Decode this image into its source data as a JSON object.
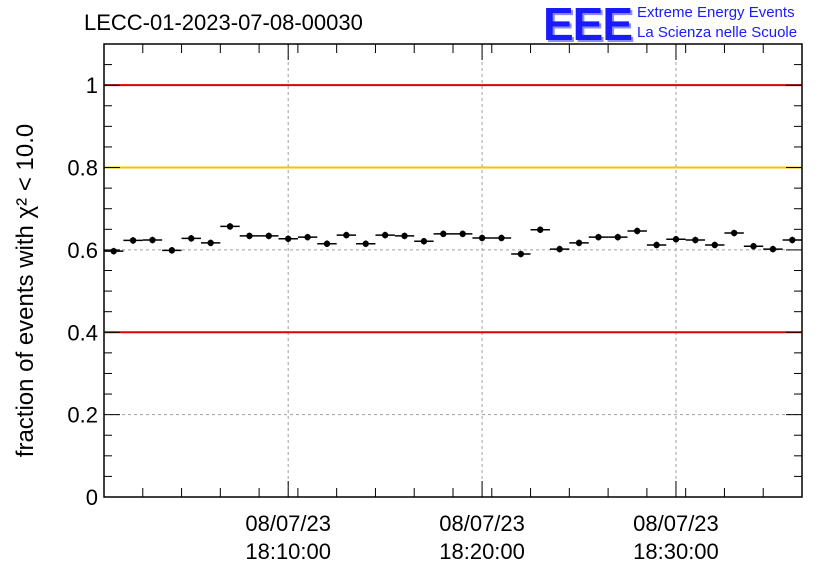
{
  "header": {
    "title": "LECC-01-2023-07-08-00030",
    "logo_text": "EEE",
    "logo_line1": "Extreme Energy Events",
    "logo_line2": "La Scienza nelle Scuole"
  },
  "chart_data": {
    "type": "scatter",
    "title": "LECC-01-2023-07-08-00030",
    "xlabel": "",
    "ylabel": "fraction of events with χ² < 10.0",
    "ylim": [
      0,
      1.1
    ],
    "xlim_minutes": [
      0,
      36
    ],
    "x_unit": "minutes after 08/07/23 18:00:30",
    "yticks": [
      "0",
      "0.2",
      "0.4",
      "0.6",
      "0.8",
      "1"
    ],
    "xticks": [
      {
        "x": 9.5,
        "date": "08/07/23",
        "time": "18:10:00"
      },
      {
        "x": 19.5,
        "date": "08/07/23",
        "time": "18:20:00"
      },
      {
        "x": 29.5,
        "date": "08/07/23",
        "time": "18:30:00"
      }
    ],
    "grid": true,
    "reference_lines": [
      {
        "y": 1.0,
        "color": "#e00000"
      },
      {
        "y": 0.8,
        "color": "#ffc000"
      },
      {
        "y": 0.4,
        "color": "#e00000"
      }
    ],
    "points": {
      "x": [
        0.5,
        1.5,
        2.5,
        3.5,
        4.5,
        5.5,
        6.5,
        7.5,
        8.5,
        9.5,
        10.5,
        11.5,
        12.5,
        13.5,
        14.5,
        15.5,
        16.5,
        17.5,
        18.5,
        19.5,
        20.5,
        21.5,
        22.5,
        23.5,
        24.5,
        25.5,
        26.5,
        27.5,
        28.5,
        29.5,
        30.5,
        31.5,
        32.5,
        33.5,
        34.5,
        35.5
      ],
      "y": [
        0.597,
        0.623,
        0.624,
        0.599,
        0.628,
        0.617,
        0.657,
        0.634,
        0.634,
        0.627,
        0.631,
        0.615,
        0.636,
        0.615,
        0.636,
        0.634,
        0.621,
        0.639,
        0.639,
        0.629,
        0.629,
        0.59,
        0.649,
        0.602,
        0.617,
        0.631,
        0.631,
        0.646,
        0.612,
        0.626,
        0.624,
        0.612,
        0.641,
        0.609,
        0.602,
        0.624
      ],
      "xerr": 0.5,
      "yerr": 0.008
    }
  }
}
